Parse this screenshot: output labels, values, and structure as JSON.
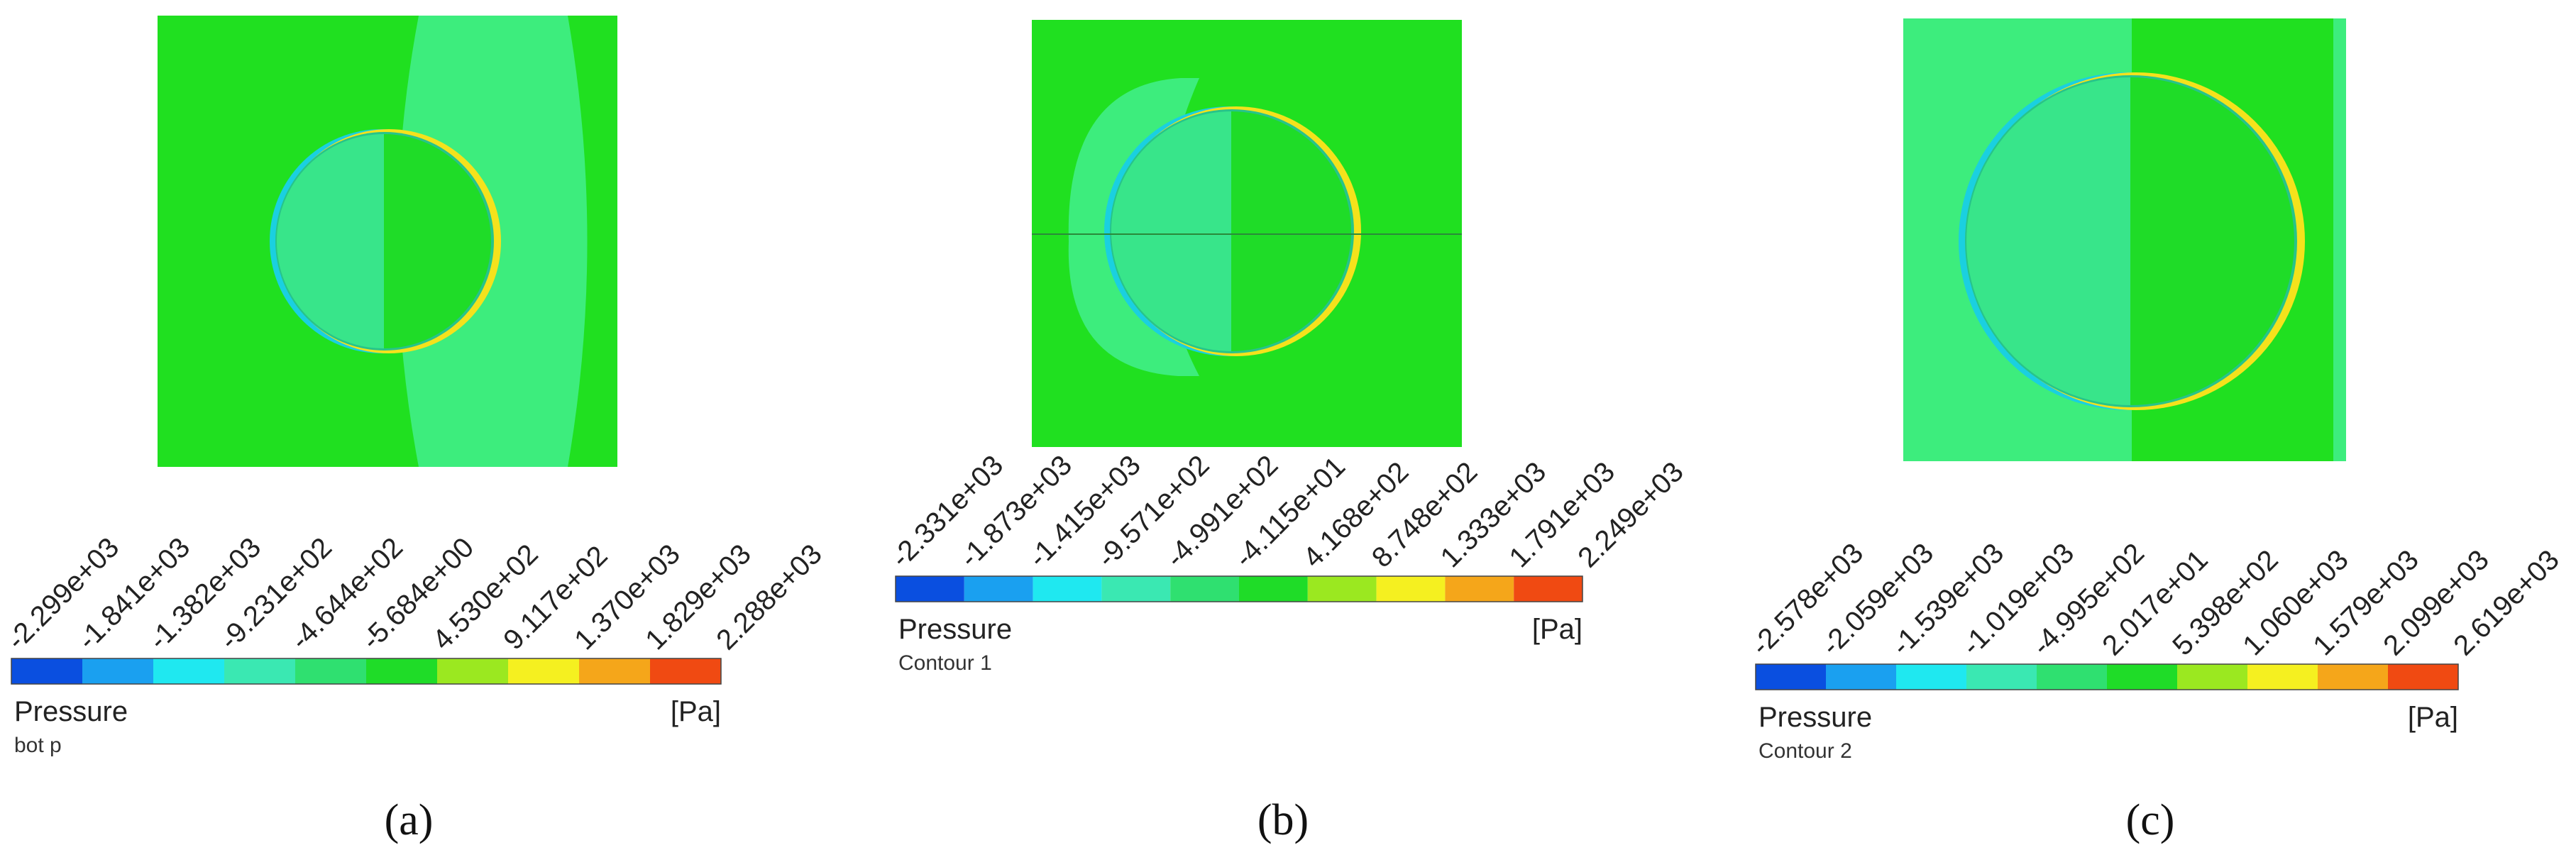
{
  "colors": {
    "background_field": "#20e020",
    "band_field": "#3ded7d",
    "circle_left": "#38e58a",
    "circle_right": "#1fdc28",
    "edge_cyan": "#1ad0e0",
    "edge_yellow": "#f4e21c",
    "colorbar": [
      "#0a4fe0",
      "#1aa0f0",
      "#1fe8f0",
      "#3ae8b2",
      "#2fe070",
      "#1fdc28",
      "#9be820",
      "#f5f020",
      "#f5a61a",
      "#f04a12"
    ]
  },
  "panels": [
    {
      "id": "a",
      "caption": "(a)",
      "legend_quantity": "Pressure",
      "legend_unit": "[Pa]",
      "legend_subtitle": "bot p",
      "tick_labels": [
        "-2.299e+03",
        "-1.841e+03",
        "-1.382e+03",
        "-9.231e+02",
        "-4.644e+02",
        "-5.684e+00",
        "4.530e+02",
        "9.117e+02",
        "1.370e+03",
        "1.829e+03",
        "2.288e+03"
      ]
    },
    {
      "id": "b",
      "caption": "(b)",
      "legend_quantity": "Pressure",
      "legend_unit": "[Pa]",
      "legend_subtitle": "Contour 1",
      "tick_labels": [
        "-2.331e+03",
        "-1.873e+03",
        "-1.415e+03",
        "-9.571e+02",
        "-4.991e+02",
        "-4.115e+01",
        "4.168e+02",
        "8.748e+02",
        "1.333e+03",
        "1.791e+03",
        "2.249e+03"
      ]
    },
    {
      "id": "c",
      "caption": "(c)",
      "legend_quantity": "Pressure",
      "legend_unit": "[Pa]",
      "legend_subtitle": "Contour 2",
      "tick_labels": [
        "-2.578e+03",
        "-2.059e+03",
        "-1.539e+03",
        "-1.019e+03",
        "-4.995e+02",
        "2.017e+01",
        "5.398e+02",
        "1.060e+03",
        "1.579e+03",
        "2.099e+03",
        "2.619e+03"
      ]
    }
  ]
}
